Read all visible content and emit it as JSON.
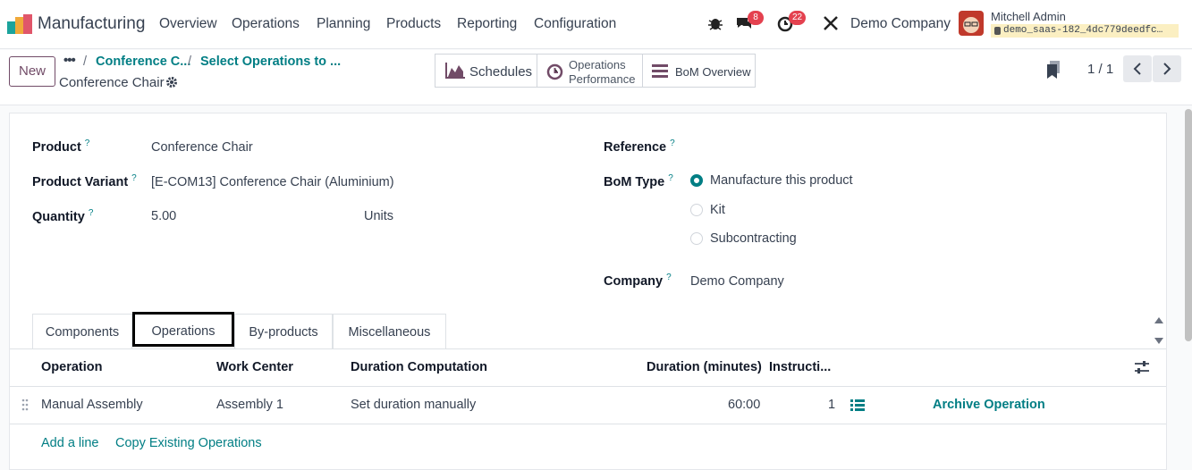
{
  "app": {
    "name": "Manufacturing"
  },
  "menu": [
    "Overview",
    "Operations",
    "Planning",
    "Products",
    "Reporting",
    "Configuration"
  ],
  "systray": {
    "chat_count": "8",
    "activity_count": "22",
    "company": "Demo Company",
    "user_name": "Mitchell Admin",
    "db": "demo_saas-182_4dc779deedfc…"
  },
  "control": {
    "new_label": "New",
    "breadcrumb": [
      "Conference C...",
      "Select Operations to ..."
    ],
    "record_title": "Conference Chair",
    "smart_buttons": {
      "schedules": "Schedules",
      "ops_perf_1": "Operations",
      "ops_perf_2": "Performance",
      "bom_overview": "BoM Overview"
    },
    "pager": "1 / 1"
  },
  "form": {
    "product_label": "Product",
    "product_value": "Conference Chair",
    "variant_label": "Product Variant",
    "variant_value": "[E-COM13] Conference Chair (Aluminium)",
    "quantity_label": "Quantity",
    "quantity_value": "5.00",
    "uom_value": "Units",
    "reference_label": "Reference",
    "bom_type_label": "BoM Type",
    "bom_types": [
      "Manufacture this product",
      "Kit",
      "Subcontracting"
    ],
    "bom_type_selected": 0,
    "company_label": "Company",
    "company_value": "Demo Company",
    "help_mark": "?"
  },
  "tabs": [
    "Components",
    "Operations",
    "By-products",
    "Miscellaneous"
  ],
  "active_tab": "Operations",
  "table": {
    "headers": {
      "operation": "Operation",
      "work_center": "Work Center",
      "duration_computation": "Duration Computation",
      "duration": "Duration (minutes)",
      "instructions": "Instructi..."
    },
    "rows": [
      {
        "operation": "Manual Assembly",
        "work_center": "Assembly 1",
        "duration_computation": "Set duration manually",
        "duration": "60:00",
        "instructions": "1",
        "action": "Archive Operation"
      }
    ],
    "add_line": "Add a line",
    "copy_existing": "Copy Existing Operations"
  }
}
